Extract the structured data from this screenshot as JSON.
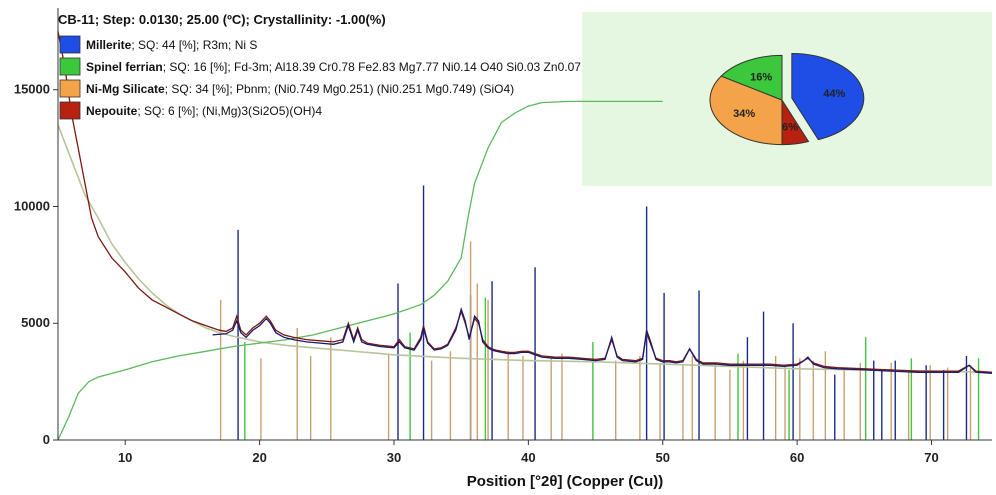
{
  "chart_data": {
    "type": "line",
    "title": "CB-11; Step: 0.0130; 25.00 (ºC); Crystallinity: -1.00(%)",
    "xlabel": "Position [°2θ] (Copper (Cu))",
    "ylabel": "",
    "xlim": [
      5,
      74.5
    ],
    "ylim": [
      0,
      18500
    ],
    "x_ticks": [
      10,
      20,
      30,
      40,
      50,
      60,
      70
    ],
    "y_ticks": [
      0,
      5000,
      10000,
      15000
    ],
    "grid": false,
    "legend_position": "top-left",
    "legend": [
      {
        "name": "Millerite",
        "detail": "; SQ: 44 [%]; R3m; Ni S",
        "color": "#1e4ee6"
      },
      {
        "name": "Spinel ferrian",
        "detail": "; SQ: 16 [%]; Fd-3m; Al18.39 Cr0.78 Fe2.83 Mg7.77 Ni0.14 O40 Si0.03 Zn0.07",
        "color": "#3cc83c"
      },
      {
        "name": "Ni-Mg Silicate",
        "detail": "; SQ: 34 [%]; Pbnm; (Ni0.749 Mg0.251) (Ni0.251 Mg0.749) (SiO4)",
        "color": "#f4a348"
      },
      {
        "name": "Nepouite",
        "detail": "; SQ: 6 [%]; (Ni,Mg)3(Si2O5)(OH)4",
        "color": "#b82010"
      }
    ],
    "pie": {
      "background": "#e6f7e1",
      "slices": [
        {
          "label": "44%",
          "value": 44,
          "color": "#1e4ee6",
          "exploded": true
        },
        {
          "label": "6%",
          "value": 6,
          "color": "#b82010",
          "exploded": false
        },
        {
          "label": "34%",
          "value": 34,
          "color": "#f4a348",
          "exploded": false
        },
        {
          "label": "16%",
          "value": 16,
          "color": "#3cc83c",
          "exploded": false
        }
      ]
    },
    "series": [
      {
        "role": "observed",
        "color": "#7a1a10",
        "x": [
          5.0,
          5.5,
          6.0,
          6.5,
          7.0,
          7.5,
          8.0,
          9.0,
          10.0,
          11.0,
          12.0,
          13.0,
          14.0,
          15.0,
          16.0,
          17.0,
          17.5,
          18.0,
          18.3,
          18.6,
          19.0,
          19.5,
          20.0,
          20.5,
          20.8,
          21.2,
          21.8,
          22.5,
          23.5,
          24.5,
          25.5,
          26.2,
          26.6,
          27.0,
          27.3,
          27.6,
          28.0,
          29.0,
          30.0,
          30.4,
          30.8,
          31.5,
          32.0,
          32.2,
          32.5,
          33.0,
          33.5,
          34.0,
          34.6,
          35.0,
          35.3,
          35.6,
          36.0,
          36.3,
          36.6,
          37.0,
          37.3,
          37.6,
          38.0,
          38.5,
          39.0,
          39.5,
          40.0,
          40.5,
          41.0,
          42.0,
          43.0,
          44.0,
          45.0,
          45.7,
          46.2,
          46.6,
          47.0,
          48.0,
          48.5,
          48.8,
          49.1,
          49.5,
          50.0,
          50.5,
          51.0,
          51.5,
          52.0,
          52.5,
          53.0,
          54.0,
          55.0,
          56.0,
          57.0,
          58.0,
          59.0,
          60.0,
          60.5,
          60.8,
          61.2,
          62.0,
          63.0,
          65.0,
          67.0,
          69.0,
          70.0,
          71.0,
          72.0,
          72.8,
          73.3,
          74.5
        ],
        "y": [
          17500,
          16000,
          14000,
          12500,
          11000,
          9500,
          8700,
          7800,
          7200,
          6500,
          6000,
          5700,
          5400,
          5100,
          4900,
          4700,
          4650,
          4800,
          5300,
          4700,
          4500,
          4800,
          5000,
          5300,
          5100,
          4700,
          4500,
          4400,
          4300,
          4250,
          4200,
          4300,
          5000,
          4300,
          4800,
          4300,
          4150,
          4050,
          4000,
          4300,
          4000,
          3900,
          4400,
          4900,
          4200,
          3900,
          3950,
          4100,
          4800,
          5500,
          5000,
          4400,
          5200,
          5000,
          4300,
          4000,
          3900,
          3850,
          3800,
          3750,
          3750,
          3800,
          3800,
          3700,
          3600,
          3550,
          3550,
          3500,
          3450,
          3500,
          4300,
          3600,
          3450,
          3400,
          3500,
          4600,
          4100,
          3500,
          3400,
          3400,
          3350,
          3400,
          3900,
          3450,
          3300,
          3300,
          3250,
          3250,
          3250,
          3250,
          3200,
          3250,
          3400,
          3500,
          3300,
          3150,
          3100,
          3050,
          3000,
          2950,
          2950,
          2950,
          2950,
          3200,
          2950,
          2900
        ]
      },
      {
        "role": "calculated",
        "color": "#1a1a6e",
        "x": [
          16.5,
          17.5,
          18.0,
          18.3,
          18.6,
          19.0,
          19.5,
          20.0,
          20.5,
          20.8,
          21.2,
          21.8,
          22.5,
          23.5,
          24.5,
          25.5,
          26.2,
          26.6,
          27.0,
          27.3,
          27.6,
          28.0,
          29.0,
          30.0,
          30.4,
          30.8,
          31.5,
          32.0,
          32.2,
          32.5,
          33.0,
          33.5,
          34.0,
          34.6,
          35.0,
          35.3,
          35.6,
          36.0,
          36.3,
          36.6,
          37.0,
          37.3,
          37.6,
          38.0,
          38.5,
          39.0,
          39.5,
          40.0,
          40.5,
          41.0,
          42.0,
          43.0,
          44.0,
          45.0,
          45.7,
          46.2,
          46.6,
          47.0,
          48.0,
          48.5,
          48.8,
          49.1,
          49.5,
          50.0,
          50.5,
          51.0,
          51.5,
          52.0,
          52.5,
          53.0,
          54.0,
          55.0,
          56.0,
          57.0,
          58.0,
          59.0,
          60.0,
          60.5,
          60.8,
          61.2,
          62.0,
          63.0,
          65.0,
          67.0,
          69.0,
          70.0,
          71.0,
          72.0,
          72.8,
          73.3,
          74.5
        ],
        "y": [
          4500,
          4550,
          4700,
          5100,
          4600,
          4400,
          4700,
          4900,
          5200,
          5000,
          4600,
          4400,
          4300,
          4200,
          4150,
          4100,
          4200,
          4900,
          4200,
          4700,
          4200,
          4100,
          4000,
          3950,
          4200,
          3950,
          3850,
          4300,
          4800,
          4150,
          3850,
          3900,
          4050,
          4700,
          5600,
          5100,
          4300,
          5300,
          5100,
          4200,
          3950,
          3850,
          3800,
          3750,
          3700,
          3700,
          3750,
          3750,
          3650,
          3550,
          3500,
          3500,
          3450,
          3400,
          3450,
          4400,
          3550,
          3400,
          3350,
          3450,
          4700,
          4200,
          3450,
          3350,
          3350,
          3300,
          3350,
          3900,
          3400,
          3250,
          3250,
          3200,
          3200,
          3200,
          3200,
          3150,
          3200,
          3400,
          3550,
          3250,
          3100,
          3050,
          3000,
          2950,
          2900,
          2900,
          2900,
          2900,
          3200,
          2900,
          2850
        ]
      },
      {
        "role": "background",
        "color": "#b8c49a",
        "x": [
          5,
          6,
          7,
          8,
          9,
          10,
          11,
          12,
          13,
          14,
          15,
          16,
          17,
          18,
          20,
          22,
          24,
          26,
          28,
          30,
          35,
          40,
          45,
          50,
          55,
          60,
          65,
          70,
          74.5
        ],
        "y": [
          13500,
          12000,
          10500,
          9500,
          8400,
          7600,
          6900,
          6300,
          5800,
          5400,
          5100,
          4800,
          4600,
          4450,
          4200,
          4050,
          3950,
          3850,
          3750,
          3650,
          3500,
          3400,
          3350,
          3250,
          3150,
          3050,
          3000,
          2950,
          2900
        ]
      },
      {
        "role": "cumulative",
        "color": "#5cb85c",
        "x": [
          5,
          5.8,
          6.5,
          7.3,
          8,
          10,
          12,
          14,
          16,
          18,
          20,
          22,
          24,
          26,
          28,
          30,
          32,
          33,
          34,
          35,
          35.5,
          36,
          37,
          38,
          39,
          40,
          41,
          43,
          50
        ],
        "y": [
          0,
          1000,
          2000,
          2500,
          2700,
          3000,
          3350,
          3600,
          3800,
          4000,
          4150,
          4300,
          4500,
          4800,
          5100,
          5400,
          5800,
          6200,
          6800,
          7800,
          9500,
          11000,
          12500,
          13600,
          14000,
          14300,
          14450,
          14500,
          14500
        ]
      }
    ],
    "reference_peaks": [
      {
        "phase": "Millerite",
        "color": "#1a2a8a",
        "positions": [
          18.4,
          30.3,
          32.2,
          35.7,
          37.3,
          40.5,
          48.8,
          50.1,
          52.7,
          56.3,
          57.5,
          59.7,
          62.8,
          65.7,
          66.3,
          67.3,
          69.6,
          70.9,
          72.6
        ],
        "intensities": [
          9000,
          6700,
          10900,
          6200,
          6800,
          7400,
          10000,
          6300,
          6400,
          4400,
          5500,
          5000,
          2800,
          3400,
          3000,
          3400,
          3200,
          3000,
          3600
        ]
      },
      {
        "phase": "Spinel ferrian",
        "color": "#3cc83c",
        "positions": [
          18.9,
          31.2,
          36.8,
          44.8,
          55.6,
          59.4,
          65.1,
          68.5,
          73.5
        ],
        "intensities": [
          4200,
          4600,
          6100,
          4200,
          3700,
          3000,
          4400,
          3500,
          3500
        ]
      },
      {
        "phase": "Ni-Mg Silicate",
        "color": "#c8a070",
        "positions": [
          17.1,
          20.1,
          22.8,
          23.8,
          25.3,
          29.6,
          32.8,
          34.2,
          35.7,
          36.2,
          37.0,
          38.5,
          39.6,
          41.7,
          42.5,
          46.5,
          48.3,
          49.8,
          51.5,
          52.2,
          53.9,
          55.0,
          56.0,
          58.4,
          59.1,
          60.2,
          61.2,
          62.1,
          63.5,
          64.7,
          67.0,
          68.3,
          69.9,
          71.2,
          72.9
        ],
        "intensities": [
          6000,
          3500,
          4800,
          3600,
          4400,
          3700,
          3400,
          3800,
          8500,
          6700,
          6000,
          3800,
          3600,
          3500,
          3700,
          3400,
          3600,
          3300,
          3200,
          3600,
          3300,
          3000,
          3400,
          3600,
          3200,
          3500,
          3400,
          3800,
          3000,
          3300,
          3300,
          2900,
          3200,
          3100,
          3200
        ]
      }
    ]
  }
}
